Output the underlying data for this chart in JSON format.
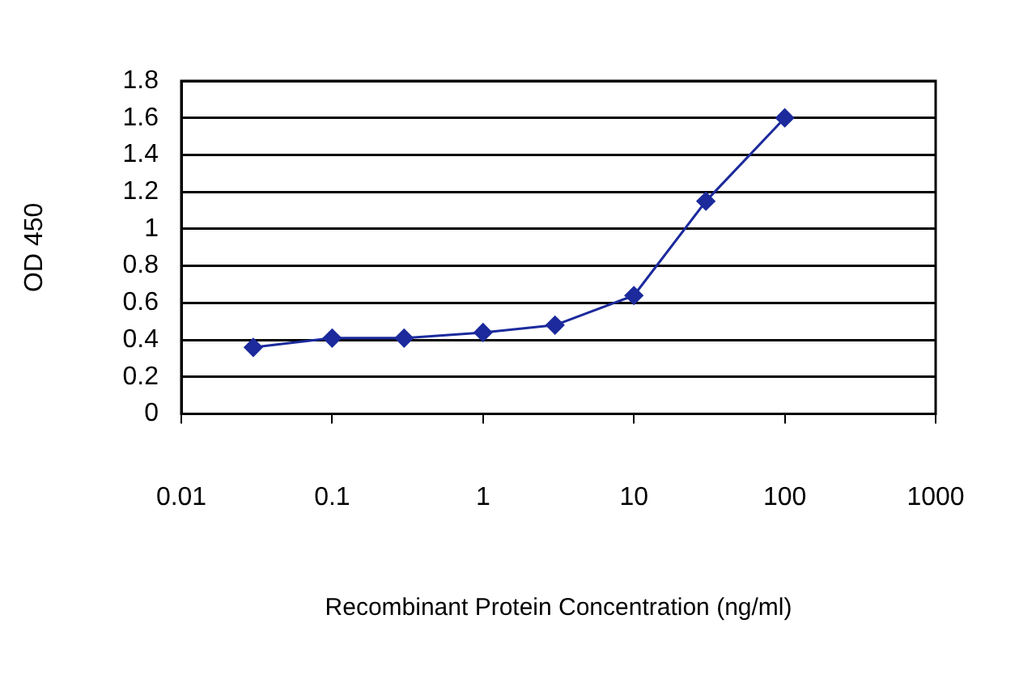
{
  "chart_data": {
    "type": "line",
    "xlabel": "Recombinant Protein Concentration (ng/ml)",
    "ylabel": "OD 450",
    "x": [
      0.03,
      0.1,
      0.3,
      1,
      3,
      10,
      30,
      100
    ],
    "series": [
      {
        "color": "#1c2a9c",
        "values": [
          0.36,
          0.41,
          0.41,
          0.44,
          0.48,
          0.64,
          1.15,
          1.6
        ]
      }
    ],
    "log": "x",
    "xlim": [
      0.01,
      1000
    ],
    "xticks": [
      0.01,
      0.1,
      1,
      10,
      100,
      1000
    ],
    "ylim": [
      0,
      1.8
    ],
    "yticks": [
      0,
      0.2,
      0.4,
      0.6,
      0.8,
      1,
      1.2,
      1.4,
      1.6,
      1.8
    ],
    "grid": "y",
    "legend": false,
    "marker": "diamond",
    "line_style": "solid"
  }
}
